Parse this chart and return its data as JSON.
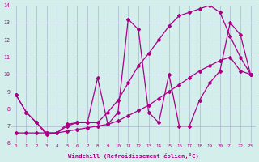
{
  "xlabel": "Windchill (Refroidissement éolien,°C)",
  "bg_color": "#d4eeeb",
  "grid_color": "#aab8cc",
  "line_color": "#aa0088",
  "xlim": [
    -0.5,
    23.5
  ],
  "ylim": [
    6,
    14
  ],
  "xticks": [
    0,
    1,
    2,
    3,
    4,
    5,
    6,
    7,
    8,
    9,
    10,
    11,
    12,
    13,
    14,
    15,
    16,
    17,
    18,
    19,
    20,
    21,
    22,
    23
  ],
  "yticks": [
    6,
    7,
    8,
    9,
    10,
    11,
    12,
    13,
    14
  ],
  "line1_x": [
    0,
    1,
    2,
    3,
    4,
    5,
    6,
    7,
    8,
    9,
    10,
    11,
    12,
    13,
    14,
    15,
    16,
    17,
    18,
    19,
    20,
    21,
    22,
    23
  ],
  "line1_y": [
    8.8,
    7.8,
    7.2,
    6.5,
    6.6,
    7.1,
    7.2,
    7.2,
    9.8,
    7.1,
    7.8,
    13.2,
    12.6,
    7.8,
    7.2,
    10.0,
    7.0,
    7.0,
    8.5,
    9.5,
    10.2,
    13.0,
    12.3,
    10.0
  ],
  "line2_x": [
    0,
    1,
    2,
    3,
    4,
    5,
    6,
    7,
    8,
    9,
    10,
    11,
    12,
    13,
    14,
    15,
    16,
    17,
    18,
    19,
    20,
    21,
    22,
    23
  ],
  "line2_y": [
    8.8,
    7.8,
    7.2,
    6.6,
    6.6,
    7.0,
    7.2,
    7.2,
    7.2,
    7.8,
    8.5,
    9.5,
    10.5,
    11.2,
    12.0,
    12.8,
    13.4,
    13.6,
    13.8,
    14.0,
    13.6,
    12.2,
    11.0,
    10.0
  ],
  "line3_x": [
    0,
    1,
    2,
    3,
    4,
    5,
    6,
    7,
    8,
    9,
    10,
    11,
    12,
    13,
    14,
    15,
    16,
    17,
    18,
    19,
    20,
    21,
    22,
    23
  ],
  "line3_y": [
    6.6,
    6.6,
    6.6,
    6.6,
    6.6,
    6.7,
    6.8,
    6.9,
    7.0,
    7.1,
    7.3,
    7.6,
    7.9,
    8.2,
    8.6,
    9.0,
    9.4,
    9.8,
    10.2,
    10.5,
    10.8,
    11.0,
    10.2,
    10.0
  ]
}
